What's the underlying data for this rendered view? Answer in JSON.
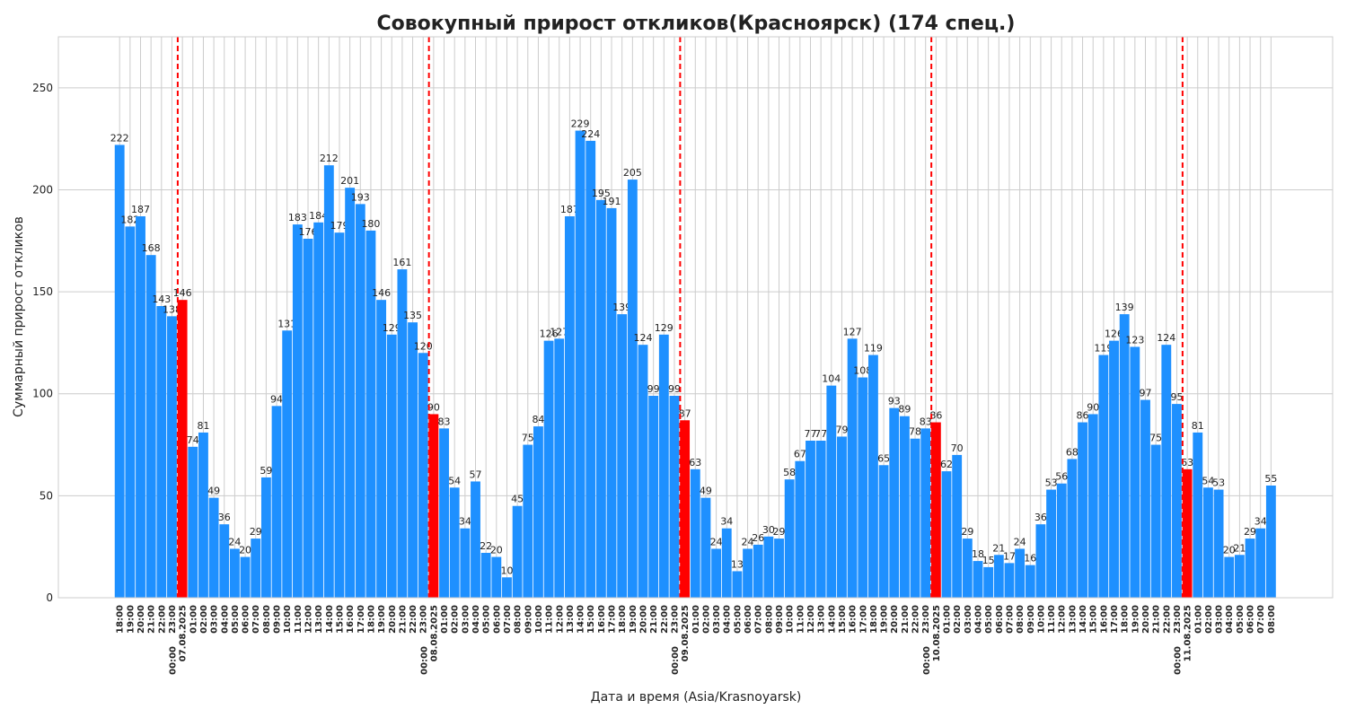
{
  "chart_data": {
    "type": "bar",
    "title": "Совокупный прирост откликов(Красноярск) (174 спец.)",
    "xlabel": "Дата и время (Asia/Krasnoyarsk)",
    "ylabel": "Суммарный прирост откликов",
    "ylim": [
      0,
      275
    ],
    "yticks": [
      0,
      50,
      100,
      150,
      200,
      250
    ],
    "grid": true,
    "colors": {
      "bar": "#1e90ff",
      "midnight_bar": "#ff0000",
      "day_line": "#ff0000",
      "grid": "#cccccc"
    },
    "categories": [
      "18:00",
      "19:00",
      "20:00",
      "21:00",
      "22:00",
      "23:00",
      "00:00 07.08.2025",
      "01:00",
      "02:00",
      "03:00",
      "04:00",
      "05:00",
      "06:00",
      "07:00",
      "08:00",
      "09:00",
      "10:00",
      "11:00",
      "12:00",
      "13:00",
      "14:00",
      "15:00",
      "16:00",
      "17:00",
      "18:00",
      "19:00",
      "20:00",
      "21:00",
      "22:00",
      "23:00",
      "00:00 08.08.2025",
      "01:00",
      "02:00",
      "03:00",
      "04:00",
      "05:00",
      "06:00",
      "07:00",
      "08:00",
      "09:00",
      "10:00",
      "11:00",
      "12:00",
      "13:00",
      "14:00",
      "15:00",
      "16:00",
      "17:00",
      "18:00",
      "19:00",
      "20:00",
      "21:00",
      "22:00",
      "23:00",
      "00:00 09.08.2025",
      "01:00",
      "02:00",
      "03:00",
      "04:00",
      "05:00",
      "06:00",
      "07:00",
      "08:00",
      "09:00",
      "10:00",
      "11:00",
      "12:00",
      "13:00",
      "14:00",
      "15:00",
      "16:00",
      "17:00",
      "18:00",
      "19:00",
      "20:00",
      "21:00",
      "22:00",
      "23:00",
      "00:00 10.08.2025",
      "01:00",
      "02:00",
      "03:00",
      "04:00",
      "05:00",
      "06:00",
      "07:00",
      "08:00",
      "09:00",
      "10:00",
      "11:00",
      "12:00",
      "13:00",
      "14:00",
      "15:00",
      "16:00",
      "17:00",
      "18:00",
      "19:00",
      "20:00",
      "21:00",
      "22:00",
      "23:00",
      "00:00 11.08.2025",
      "01:00",
      "02:00",
      "03:00",
      "04:00",
      "05:00",
      "06:00",
      "07:00",
      "08:00"
    ],
    "values": [
      222,
      182,
      187,
      168,
      143,
      138,
      146,
      74,
      81,
      49,
      36,
      24,
      20,
      29,
      59,
      94,
      131,
      183,
      176,
      184,
      212,
      179,
      201,
      193,
      180,
      146,
      129,
      161,
      135,
      120,
      90,
      83,
      54,
      34,
      57,
      22,
      20,
      10,
      45,
      75,
      84,
      126,
      127,
      187,
      229,
      224,
      195,
      191,
      139,
      205,
      124,
      99,
      129,
      99,
      87,
      63,
      49,
      24,
      34,
      13,
      24,
      26,
      30,
      29,
      58,
      67,
      77,
      77,
      104,
      79,
      127,
      108,
      119,
      65,
      93,
      89,
      78,
      83,
      86,
      62,
      70,
      29,
      18,
      15,
      21,
      17,
      24,
      16,
      36,
      53,
      56,
      68,
      86,
      90,
      119,
      126,
      139,
      123,
      97,
      75,
      124,
      95,
      63,
      81,
      54,
      53,
      20,
      21,
      29,
      34,
      55
    ],
    "highlight_indices": [
      6,
      30,
      54,
      78,
      102
    ]
  }
}
